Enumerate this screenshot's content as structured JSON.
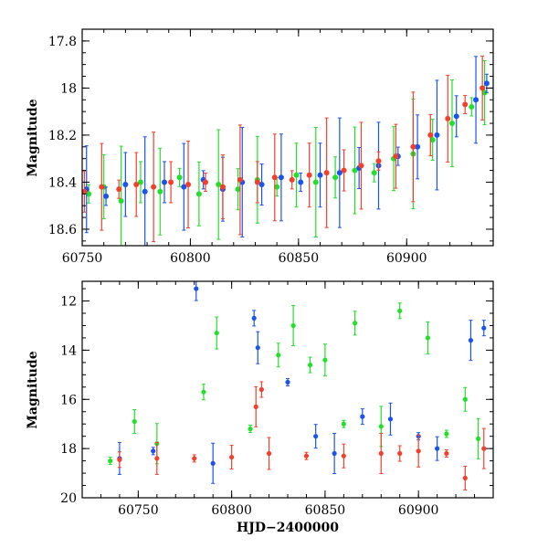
{
  "chart_data": [
    {
      "type": "scatter",
      "title": "",
      "xlabel": "",
      "ylabel": "Magnitude",
      "xlim": [
        60750,
        60940
      ],
      "ylim": [
        18.67,
        17.75
      ],
      "y_inverted": true,
      "grid": false,
      "xticks": [
        60750,
        60800,
        60850,
        60900
      ],
      "xtick_labels": [
        "60750",
        "60800",
        "60850",
        "60900"
      ],
      "yticks": [
        17.8,
        18,
        18.2,
        18.4,
        18.6
      ],
      "ytick_labels": [
        "17.8",
        "18",
        "18.2",
        "18.4",
        "18.6"
      ],
      "series": [
        {
          "color": "#22e02a",
          "x": [
            60753,
            60760,
            60768,
            60777,
            60786,
            60795,
            60804,
            60813,
            60822,
            60831,
            60840,
            60849,
            60858,
            60867,
            60876,
            60885,
            60894,
            60903,
            60912,
            60921,
            60930,
            60936
          ],
          "y": [
            18.45,
            18.42,
            18.48,
            18.4,
            18.44,
            18.38,
            18.45,
            18.41,
            18.43,
            18.39,
            18.42,
            18.37,
            18.4,
            18.38,
            18.35,
            18.36,
            18.3,
            18.28,
            18.22,
            18.15,
            18.08,
            18.02
          ]
        },
        {
          "color": "#1a53f0",
          "x": [
            60752,
            60761,
            60770,
            60779,
            60788,
            60797,
            60806,
            60815,
            60824,
            60833,
            60842,
            60851,
            60860,
            60869,
            60878,
            60887,
            60896,
            60905,
            60914,
            60923,
            60932,
            60937
          ],
          "y": [
            18.43,
            18.46,
            18.41,
            18.44,
            18.4,
            18.42,
            18.39,
            18.43,
            18.4,
            18.41,
            18.38,
            18.4,
            18.37,
            18.36,
            18.34,
            18.33,
            18.29,
            18.25,
            18.2,
            18.12,
            18.05,
            17.98
          ]
        },
        {
          "color": "#f2402c",
          "x": [
            60751,
            60759,
            60767,
            60775,
            60783,
            60791,
            60799,
            60807,
            60815,
            60823,
            60831,
            60839,
            60847,
            60855,
            60863,
            60871,
            60879,
            60887,
            60895,
            60903,
            60911,
            60919,
            60927,
            60935
          ],
          "y": [
            18.44,
            18.42,
            18.43,
            18.41,
            18.42,
            18.4,
            18.41,
            18.4,
            18.42,
            18.39,
            18.4,
            18.38,
            18.39,
            18.37,
            18.36,
            18.35,
            18.33,
            18.31,
            18.29,
            18.25,
            18.2,
            18.13,
            18.07,
            18.0
          ]
        }
      ]
    },
    {
      "type": "scatter",
      "title": "",
      "xlabel": "HJD−2400000",
      "ylabel": "Magnitude",
      "xlim": [
        60720,
        60940
      ],
      "ylim": [
        20,
        11.2
      ],
      "y_inverted": true,
      "grid": false,
      "xticks": [
        60750,
        60800,
        60850,
        60900
      ],
      "xtick_labels": [
        "60750",
        "60800",
        "60850",
        "60900"
      ],
      "yticks": [
        12,
        14,
        16,
        18,
        20
      ],
      "ytick_labels": [
        "12",
        "14",
        "16",
        "18",
        "20"
      ],
      "series": [
        {
          "color": "#22e02a",
          "x": [
            60735,
            60748,
            60760,
            60785,
            60792,
            60810,
            60825,
            60833,
            60842,
            60850,
            60860,
            60866,
            60880,
            60890,
            60905,
            60915,
            60925,
            60932
          ],
          "y": [
            18.5,
            16.9,
            17.8,
            15.7,
            13.3,
            17.2,
            14.2,
            13.0,
            14.6,
            14.4,
            17.0,
            12.9,
            17.1,
            12.4,
            13.5,
            17.4,
            16.0,
            17.6
          ]
        },
        {
          "color": "#1a53f0",
          "x": [
            60740,
            60758,
            60781,
            60790,
            60812,
            60814,
            60830,
            60845,
            60855,
            60870,
            60885,
            60900,
            60910,
            60928,
            60935
          ],
          "y": [
            18.4,
            18.1,
            11.5,
            18.6,
            12.7,
            13.9,
            15.3,
            17.5,
            18.2,
            16.7,
            16.8,
            17.5,
            18.0,
            13.6,
            13.1
          ]
        },
        {
          "color": "#f2402c",
          "x": [
            60740,
            60760,
            60780,
            60800,
            60813,
            60816,
            60820,
            60840,
            60860,
            60880,
            60890,
            60900,
            60915,
            60925,
            60935
          ],
          "y": [
            18.45,
            18.4,
            18.4,
            18.35,
            16.3,
            15.6,
            18.2,
            18.3,
            18.3,
            18.2,
            18.2,
            18.1,
            18.2,
            19.2,
            18.0
          ]
        }
      ]
    }
  ]
}
